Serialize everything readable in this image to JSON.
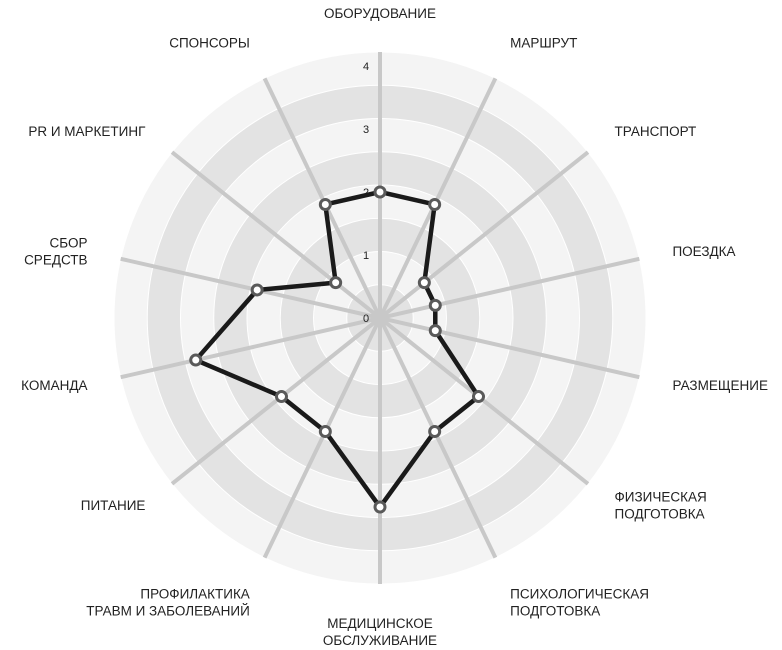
{
  "chart_data": {
    "type": "radar",
    "axes": [
      [
        "ОБОРУДОВАНИЕ"
      ],
      [
        "МАРШРУТ"
      ],
      [
        "ТРАНСПОРТ"
      ],
      [
        "ПОЕЗДКА"
      ],
      [
        "РАЗМЕЩЕНИЕ"
      ],
      [
        "ФИЗИЧЕСКАЯ",
        "ПОДГОТОВКА"
      ],
      [
        "ПСИХОЛОГИЧЕСКАЯ",
        "ПОДГОТОВКА"
      ],
      [
        "МЕДИЦИНСКОЕ",
        "ОБСЛУЖИВАНИЕ"
      ],
      [
        "ПРОФИЛАКТИКА",
        "ТРАВМ И ЗАБОЛЕВАНИЙ"
      ],
      [
        "ПИТАНИЕ"
      ],
      [
        "КОМАНДА"
      ],
      [
        "СБОР",
        "СРЕДСТВ"
      ],
      [
        "PR И МАРКЕТИНГ"
      ],
      [
        "СПОНСОРЫ"
      ]
    ],
    "ticks": [
      "0",
      "1",
      "2",
      "3",
      "4"
    ],
    "rmax": 4,
    "values": [
      2.0,
      2.0,
      0.9,
      0.9,
      0.9,
      2.0,
      2.0,
      3.0,
      2.0,
      2.0,
      3.0,
      2.0,
      0.9,
      2.0
    ],
    "colors": {
      "ring_light": "#f4f4f4",
      "ring_dark": "#e3e3e3",
      "spoke": "#c8c8c8",
      "line": "#1a1a1a",
      "marker_stroke": "#5a5a5a",
      "marker_fill": "#ffffff"
    }
  }
}
